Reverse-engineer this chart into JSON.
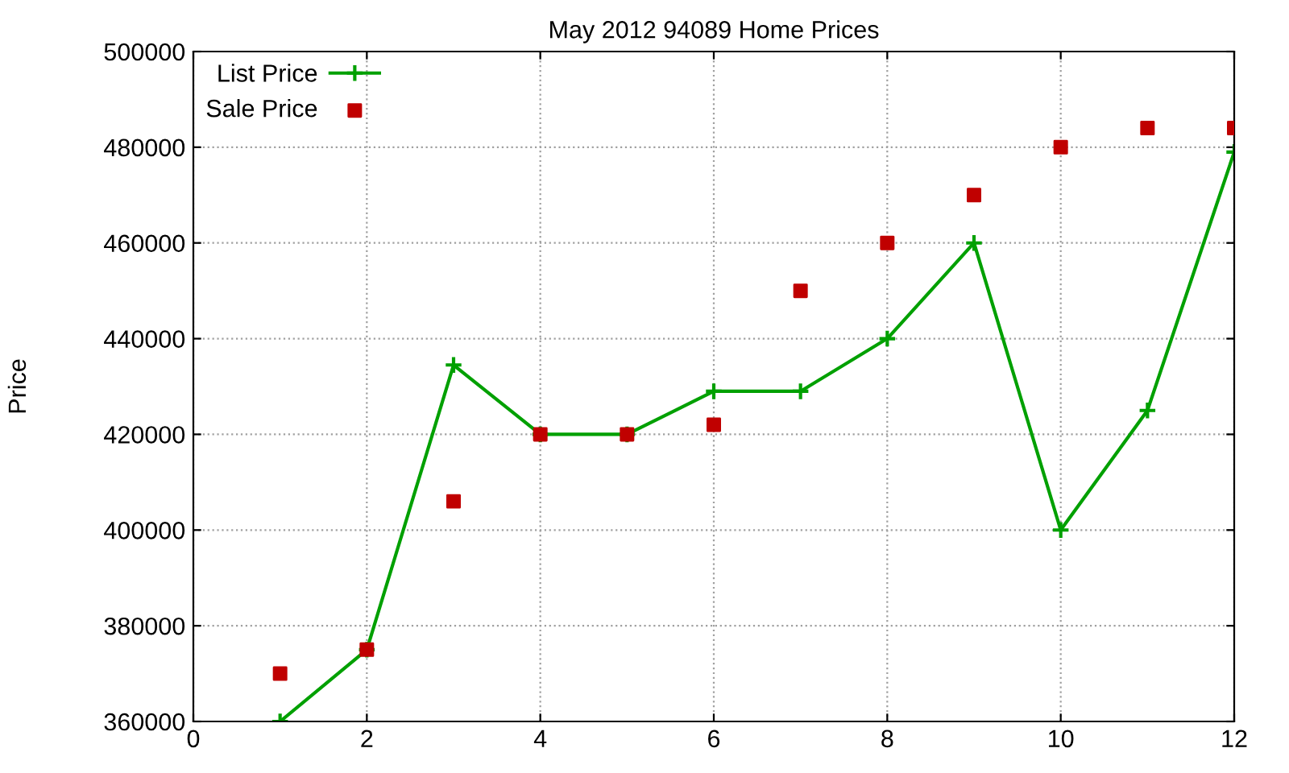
{
  "chart_data": {
    "type": "line",
    "title": "May 2012 94089 Home Prices",
    "ylabel": "Price",
    "x": [
      1,
      2,
      3,
      4,
      5,
      6,
      7,
      8,
      9,
      10,
      11,
      12
    ],
    "series": [
      {
        "name": "List Price",
        "color": "#00a000",
        "marker": "cross",
        "values": [
          360000,
          375000,
          434500,
          420000,
          420000,
          429000,
          429000,
          440000,
          460000,
          400000,
          425000,
          479000
        ]
      },
      {
        "name": "Sale Price",
        "type": "scatter",
        "color": "#c00000",
        "marker": "square",
        "values": [
          370000,
          375000,
          406000,
          420000,
          420000,
          422000,
          450000,
          460000,
          470000,
          480000,
          484000,
          484000
        ]
      }
    ],
    "xlim": [
      0,
      12
    ],
    "xticks": [
      0,
      2,
      4,
      6,
      8,
      10,
      12
    ],
    "ylim": [
      360000,
      500000
    ],
    "yticks": [
      360000,
      380000,
      400000,
      420000,
      440000,
      460000,
      480000,
      500000
    ],
    "grid": true,
    "legend": "top left"
  }
}
